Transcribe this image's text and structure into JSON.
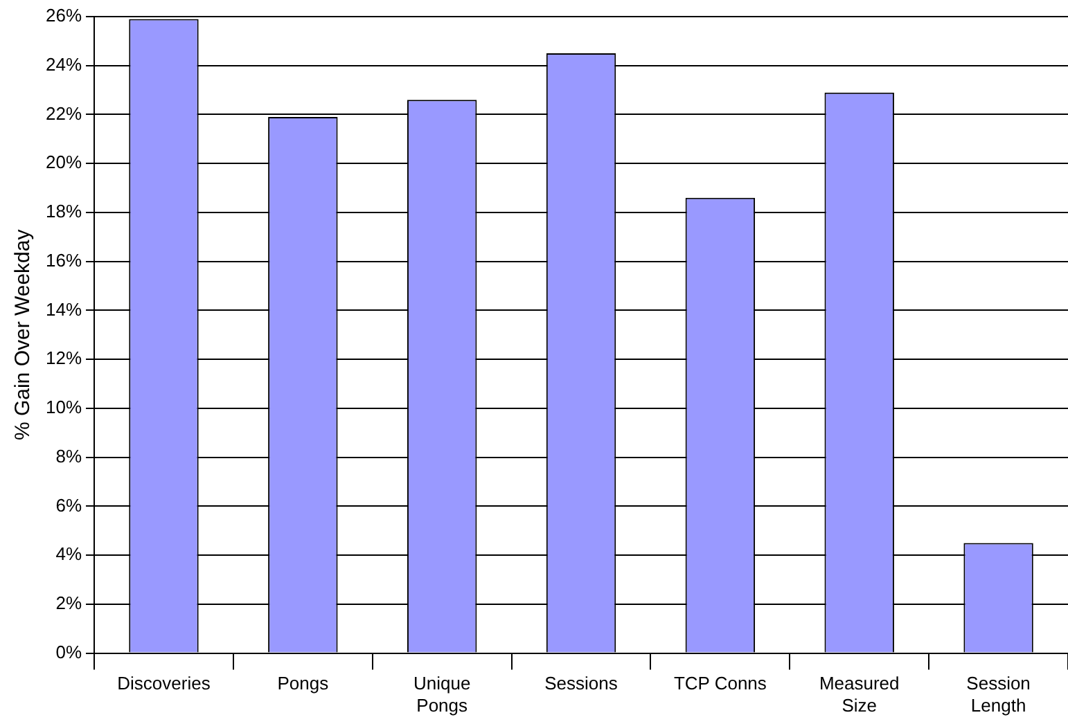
{
  "chart_data": {
    "type": "bar",
    "ylabel": "% Gain Over Weekday",
    "categories": [
      "Discoveries",
      "Pongs",
      "Unique Pongs",
      "Sessions",
      "TCP Conns",
      "Measured Size",
      "Session Length"
    ],
    "values": [
      25.9,
      21.9,
      22.6,
      24.5,
      18.6,
      22.9,
      4.5
    ],
    "color": "#9999ff",
    "ylim": [
      0,
      26
    ],
    "yticks": [
      {
        "value": 0,
        "label": "0%"
      },
      {
        "value": 2,
        "label": "2%"
      },
      {
        "value": 4,
        "label": "4%"
      },
      {
        "value": 6,
        "label": "6%"
      },
      {
        "value": 8,
        "label": "8%"
      },
      {
        "value": 10,
        "label": "10%"
      },
      {
        "value": 12,
        "label": "12%"
      },
      {
        "value": 14,
        "label": "14%"
      },
      {
        "value": 16,
        "label": "16%"
      },
      {
        "value": 18,
        "label": "18%"
      },
      {
        "value": 20,
        "label": "20%"
      },
      {
        "value": 22,
        "label": "22%"
      },
      {
        "value": 24,
        "label": "24%"
      },
      {
        "value": 26,
        "label": "26%"
      }
    ],
    "grid": "y",
    "legend": false
  }
}
